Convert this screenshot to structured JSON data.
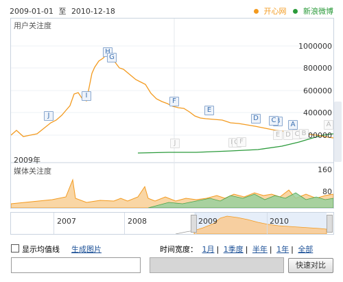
{
  "header": {
    "date_start": "2009-01-01",
    "date_to": "至",
    "date_end": "2010-12-18",
    "legend": [
      {
        "label": "开心网",
        "color": "#f39a1e"
      },
      {
        "label": "新浪微博",
        "color": "#2a9a3a"
      }
    ]
  },
  "panels": {
    "attention_label": "用户关注度",
    "media_label": "媒体关注度",
    "year_overlay": "2009年"
  },
  "y_ticks_top": [
    "1000000",
    "800000",
    "600000",
    "400000",
    "200000"
  ],
  "y_ticks_media": [
    "160",
    "80"
  ],
  "markers": [
    "H",
    "G",
    "I",
    "J",
    "F",
    "E",
    "D",
    "B",
    "C",
    "A"
  ],
  "faded_markers": [
    "J",
    "H",
    "G",
    "F",
    "E",
    "D",
    "C",
    "B",
    "A"
  ],
  "navigator": {
    "years": [
      "2007",
      "2008",
      "2009",
      "2010"
    ]
  },
  "controls": {
    "show_avg_label": "显示均值线",
    "gen_image_label": "生成图片",
    "time_width_label": "时间宽度：",
    "spans": [
      "1月",
      "1季度",
      "半年",
      "1年",
      "全部"
    ],
    "compare_button": "快速对比"
  },
  "colors": {
    "kaixin": "#f39a1e",
    "weibo": "#2a9a3a",
    "fill": "#f9d6a5",
    "nav_fill": "#f7cfa0"
  },
  "chart_data": {
    "type": "line",
    "title": "用户关注度",
    "x_range": [
      "2009-01-01",
      "2010-12-18"
    ],
    "ylim": [
      0,
      1100000
    ],
    "series": [
      {
        "name": "开心网",
        "x": [
          "2009-01",
          "2009-02",
          "2009-03",
          "2009-04",
          "2009-05",
          "2009-06",
          "2009-07",
          "2009-08",
          "2009-09",
          "2009-10",
          "2009-11",
          "2009-12",
          "2010-01",
          "2010-02",
          "2010-03",
          "2010-04",
          "2010-05",
          "2010-06",
          "2010-07",
          "2010-08",
          "2010-09",
          "2010-10",
          "2010-11",
          "2010-12"
        ],
        "values": [
          220000,
          200000,
          300000,
          420000,
          560000,
          820000,
          900000,
          800000,
          690000,
          630000,
          520000,
          450000,
          380000,
          360000,
          330000,
          320000,
          310000,
          300000,
          280000,
          260000,
          240000,
          220000,
          210000,
          200000
        ]
      },
      {
        "name": "新浪微博",
        "x": [
          "2009-08",
          "2009-10",
          "2009-12",
          "2010-02",
          "2010-04",
          "2010-06",
          "2010-08",
          "2010-10",
          "2010-12"
        ],
        "values": [
          0,
          5000,
          10000,
          15000,
          30000,
          50000,
          90000,
          150000,
          200000
        ]
      }
    ]
  }
}
